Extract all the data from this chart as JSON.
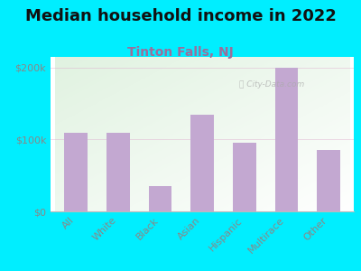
{
  "title": "Median household income in 2022",
  "subtitle": "Tinton Falls, NJ",
  "categories": [
    "All",
    "White",
    "Black",
    "Asian",
    "Hispanic",
    "Multirace",
    "Other"
  ],
  "values": [
    110000,
    110000,
    35000,
    135000,
    95000,
    200000,
    85000
  ],
  "bar_color": "#c3a8d1",
  "bar_edge_color": "#b89ec4",
  "background_outer": "#00eeff",
  "title_color": "#111111",
  "subtitle_color": "#9b6e9b",
  "tick_label_color": "#888888",
  "ytick_labels": [
    "$0",
    "$100k",
    "$200k"
  ],
  "ytick_values": [
    0,
    100000,
    200000
  ],
  "ylim": [
    0,
    215000
  ],
  "watermark": "City-Data.com",
  "title_fontsize": 13,
  "subtitle_fontsize": 10,
  "tick_fontsize": 8
}
